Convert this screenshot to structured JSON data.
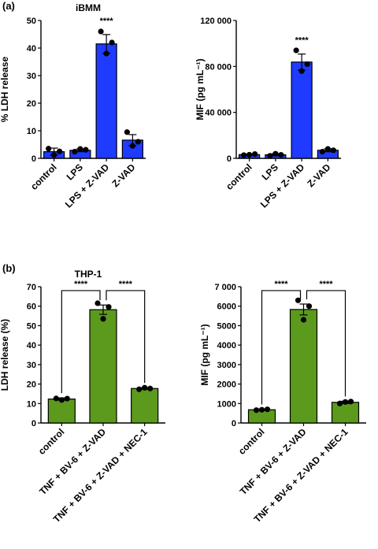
{
  "colors": {
    "blue": "#1f3bff",
    "green": "#5b9a1c",
    "axis": "#000000"
  },
  "panel_labels": [
    "(a)",
    "(b)"
  ],
  "chart_data": [
    {
      "type": "bar",
      "title": "iBMM",
      "ylabel": "% LDH release",
      "ylim": [
        0,
        50
      ],
      "yticks": [
        "0",
        "10",
        "20",
        "30",
        "40",
        "50"
      ],
      "categories": [
        "control",
        "LPS",
        "LPS + Z-VAD",
        "Z-VAD"
      ],
      "values": [
        2.4,
        2.9,
        41.5,
        6.6
      ],
      "errors": [
        1.3,
        0.5,
        3.4,
        2.0
      ],
      "points": [
        [
          3.5,
          1.2,
          2.5
        ],
        [
          2.4,
          3.4,
          3.1
        ],
        [
          46,
          38,
          42
        ],
        [
          9.5,
          4.5,
          6
        ]
      ],
      "significance": [
        {
          "category": 2,
          "label": "****"
        }
      ],
      "brackets": []
    },
    {
      "type": "bar",
      "title": "",
      "ylabel": "MIF (pg mL⁻¹)",
      "ylim": [
        0,
        120000
      ],
      "yticks": [
        "0",
        "40 000",
        "80 000",
        "120 000"
      ],
      "categories": [
        "control",
        "LPS",
        "LPS + Z-VAD",
        "Z-VAD"
      ],
      "values": [
        3200,
        3100,
        83800,
        7000
      ],
      "errors": [
        600,
        900,
        7000,
        1300
      ],
      "points": [
        [
          2800,
          3100,
          3700
        ],
        [
          2200,
          4000,
          3000
        ],
        [
          94000,
          76000,
          82000
        ],
        [
          5800,
          8200,
          7000
        ]
      ],
      "significance": [
        {
          "category": 2,
          "label": "****"
        }
      ],
      "brackets": []
    },
    {
      "type": "bar",
      "title": "THP-1",
      "ylabel": "LDH release (%)",
      "ylim": [
        0,
        70
      ],
      "yticks": [
        "0",
        "10",
        "20",
        "30",
        "40",
        "50",
        "60",
        "70"
      ],
      "categories": [
        "control",
        "TNF + BV-6 + Z-VAD",
        "TNF + BV-6 + Z-VAD + NEC-1"
      ],
      "values": [
        12.3,
        58.2,
        17.7
      ],
      "errors": [
        0.6,
        2.4,
        0.4
      ],
      "points": [
        [
          12.6,
          11.8,
          12.5
        ],
        [
          61.5,
          53.5,
          59.6
        ],
        [
          17.3,
          18.1,
          17.7
        ]
      ],
      "significance": [],
      "brackets": [
        {
          "from": 0,
          "to": 1,
          "y": 68,
          "label": "****"
        },
        {
          "from": 1,
          "to": 2,
          "y": 68,
          "label": "****"
        }
      ]
    },
    {
      "type": "bar",
      "title": "",
      "ylabel": "MIF (pg mL⁻¹)",
      "ylim": [
        0,
        7000
      ],
      "yticks": [
        "0",
        "1000",
        "2000",
        "3000",
        "4000",
        "5000",
        "6000",
        "7 000"
      ],
      "categories": [
        "control",
        "TNF + BV-6 + Z-VAD",
        "TNF + BV-6 + Z-VAD + NEC-1"
      ],
      "values": [
        680,
        5830,
        1060
      ],
      "errors": [
        30,
        280,
        60
      ],
      "points": [
        [
          660,
          680,
          700
        ],
        [
          6300,
          5300,
          6000
        ],
        [
          1000,
          1080,
          1100
        ]
      ],
      "significance": [],
      "brackets": [
        {
          "from": 0,
          "to": 1,
          "y": 6800,
          "label": "****"
        },
        {
          "from": 1,
          "to": 2,
          "y": 6800,
          "label": "****"
        }
      ]
    }
  ]
}
